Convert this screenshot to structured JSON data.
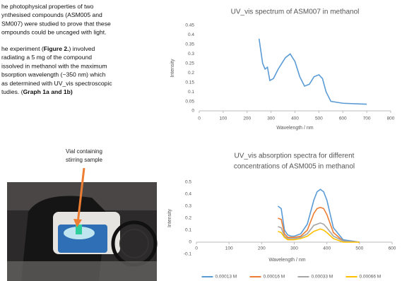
{
  "text": {
    "paragraphs": [
      [
        [
          {
            "text": "he photophysical   properties of two"
          }
        ],
        [
          {
            "text": "ynthesised  compounds  (ASM005  and"
          }
        ],
        [
          {
            "text": "SM007) were studied to prove that these"
          }
        ],
        [
          {
            "text": "ompounds could be uncaged with light."
          }
        ]
      ],
      [
        [
          {
            "text": "he  experiment  ("
          },
          {
            "text": "Figure  2.",
            "bold": true
          },
          {
            "text": ")  involved"
          }
        ],
        [
          {
            "text": "radiating  a  5  mg  of  the  compound"
          }
        ],
        [
          {
            "text": "issolved in methanol with the maximum"
          }
        ],
        [
          {
            "text": "bsorption wavelength (~350 nm) which"
          }
        ],
        [
          {
            "text": "as determined with UV_vis spectroscopic"
          }
        ],
        [
          {
            "text": "tudies. ("
          },
          {
            "text": "Graph 1a and 1b)",
            "bold": true
          }
        ]
      ]
    ]
  },
  "photo": {
    "caption": [
      "Vial containing",
      "stirring sample"
    ]
  },
  "chart_data": [
    {
      "type": "line",
      "title": [
        "UV_vis spectrum of ASM007 in methanol"
      ],
      "x_label": "Wavelength / nm",
      "y_label": "Intensity",
      "x": [
        250,
        265,
        275,
        285,
        295,
        310,
        330,
        360,
        380,
        400,
        420,
        440,
        460,
        480,
        500,
        515,
        530,
        550,
        600,
        700
      ],
      "series": [
        {
          "name": null,
          "color": "#5b9bd5",
          "values": [
            0.38,
            0.25,
            0.22,
            0.23,
            0.16,
            0.17,
            0.22,
            0.28,
            0.3,
            0.26,
            0.18,
            0.13,
            0.14,
            0.18,
            0.19,
            0.17,
            0.1,
            0.05,
            0.04,
            0.035
          ]
        }
      ],
      "xlim": [
        0,
        800
      ],
      "xticks": [
        0,
        100,
        200,
        300,
        400,
        500,
        600,
        700,
        800
      ],
      "ylim": [
        0,
        0.45
      ],
      "yticks": [
        0,
        0.05,
        0.1,
        0.15,
        0.2,
        0.25,
        0.3,
        0.35,
        0.4,
        0.45
      ]
    },
    {
      "type": "line",
      "title": [
        "UV_vis absorption spectra for different",
        "concentrations of ASM005 in methanol"
      ],
      "x_label": "Wavelength / nm",
      "y_label": "Intensity",
      "x": [
        250,
        260,
        270,
        280,
        290,
        300,
        320,
        340,
        360,
        370,
        380,
        390,
        400,
        420,
        450,
        500
      ],
      "series": [
        {
          "name": "0.00013 M",
          "color": "#5b9bd5",
          "values": [
            0.3,
            0.28,
            0.1,
            0.06,
            0.05,
            0.05,
            0.07,
            0.15,
            0.35,
            0.42,
            0.44,
            0.42,
            0.35,
            0.12,
            0.02,
            0.0
          ]
        },
        {
          "name": "0.00016 M",
          "color": "#ed7d31",
          "values": [
            0.2,
            0.19,
            0.07,
            0.04,
            0.04,
            0.04,
            0.05,
            0.1,
            0.24,
            0.28,
            0.29,
            0.28,
            0.23,
            0.08,
            0.01,
            0.0
          ]
        },
        {
          "name": "0.00033 M",
          "color": "#a5a5a5",
          "values": [
            0.13,
            0.12,
            0.05,
            0.03,
            0.03,
            0.03,
            0.04,
            0.07,
            0.14,
            0.15,
            0.16,
            0.15,
            0.12,
            0.05,
            0.01,
            0.0
          ]
        },
        {
          "name": "0.00066 M",
          "color": "#ffc000",
          "values": [
            0.09,
            0.08,
            0.04,
            0.02,
            0.02,
            0.02,
            0.03,
            0.05,
            0.09,
            0.1,
            0.11,
            0.1,
            0.08,
            0.03,
            0.0,
            0.0
          ]
        }
      ],
      "xlim": [
        0,
        600
      ],
      "xticks": [
        0,
        100,
        200,
        300,
        400,
        500,
        600
      ],
      "ylim": [
        -0.1,
        0.5
      ],
      "yticks": [
        -0.1,
        0,
        0.1,
        0.2,
        0.3,
        0.4,
        0.5
      ],
      "legend": "bottom"
    }
  ]
}
